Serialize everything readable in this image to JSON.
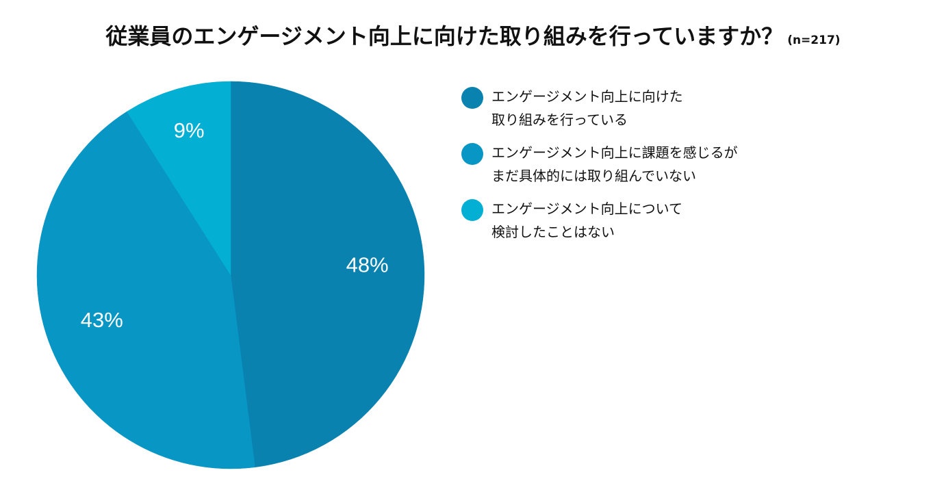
{
  "title": {
    "main": "従業員のエンゲージメント向上に向けた取り組みを行っていますか？",
    "note": "(n=217)"
  },
  "chart_data": {
    "type": "pie",
    "slices": [
      {
        "label_lines": [
          "エンゲージメント向上に向けた",
          "取り組みを行っている"
        ],
        "value": 48,
        "display": "48%",
        "color": "#0982B0"
      },
      {
        "label_lines": [
          "エンゲージメント向上に課題を感じるが",
          "まだ具体的には取り組んでいない"
        ],
        "value": 43,
        "display": "43%",
        "color": "#0896C4"
      },
      {
        "label_lines": [
          "エンゲージメント向上について",
          "検討したことはない"
        ],
        "value": 9,
        "display": "9%",
        "color": "#03AFD3"
      }
    ],
    "legend_position": "right"
  }
}
